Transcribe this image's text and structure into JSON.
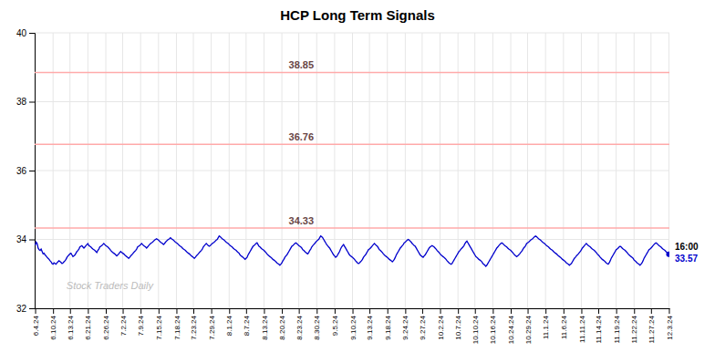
{
  "chart_data": {
    "type": "line",
    "title": "HCP Long Term Signals",
    "color": "#0000cc",
    "grid": true,
    "ylim": [
      32,
      40
    ],
    "yticks": [
      32,
      34,
      36,
      38,
      40
    ],
    "hlines": [
      {
        "y": 38.85,
        "label": "38.85",
        "color": "#ffaaaa"
      },
      {
        "y": 36.76,
        "label": "36.76",
        "color": "#ffaaaa"
      },
      {
        "y": 34.33,
        "label": "34.33",
        "color": "#ffaaaa"
      }
    ],
    "annotations": [
      {
        "text": "16:00",
        "y": 33.57,
        "color": "#000000"
      },
      {
        "text": "33.57",
        "y": 33.57,
        "color": "#0000cc"
      }
    ],
    "watermark": {
      "text": "Stock Traders Daily",
      "color": "#bbbbbb"
    },
    "categories": [
      "6.4.24",
      null,
      null,
      null,
      null,
      null,
      null,
      null,
      null,
      null,
      null,
      null,
      null,
      null,
      null,
      null,
      null,
      null,
      "6.10.24",
      null,
      null,
      null,
      null,
      null,
      null,
      null,
      null,
      null,
      null,
      null,
      null,
      null,
      null,
      null,
      null,
      "6.13.24",
      null,
      null,
      null,
      null,
      null,
      null,
      null,
      null,
      null,
      null,
      null,
      null,
      null,
      null,
      null,
      null,
      null,
      "6.21.24",
      null,
      null,
      null,
      null,
      null,
      null,
      null,
      null,
      null,
      null,
      null,
      null,
      null,
      null,
      null,
      null,
      null,
      "6.26.24",
      null,
      null,
      null,
      null,
      null,
      null,
      null,
      null,
      null,
      null,
      null,
      null,
      null,
      null,
      null,
      null,
      "7.2.24",
      null,
      null,
      null,
      null,
      null,
      null,
      null,
      null,
      null,
      null,
      null,
      null,
      null,
      null,
      null,
      null,
      null,
      "7.9.24",
      null,
      null,
      null,
      null,
      null,
      null,
      null,
      null,
      null,
      null,
      null,
      null,
      null,
      null,
      null,
      null,
      null,
      "7.15.24",
      null,
      null,
      null,
      null,
      null,
      null,
      null,
      null,
      null,
      null,
      null,
      null,
      null,
      null,
      null,
      null,
      null,
      "7.18.24",
      null,
      null,
      null,
      null,
      null,
      null,
      null,
      null,
      null,
      null,
      null,
      null,
      null,
      null,
      null,
      null,
      "7.23.24",
      null,
      null,
      null,
      null,
      null,
      null,
      null,
      null,
      null,
      null,
      null,
      null,
      null,
      null,
      null,
      null,
      null,
      "7.29.24",
      null,
      null,
      null,
      null,
      null,
      null,
      null,
      null,
      null,
      null,
      null,
      null,
      null,
      null,
      null,
      null,
      null,
      "8.1.24",
      null,
      null,
      null,
      null,
      null,
      null,
      null,
      null,
      null,
      null,
      null,
      null,
      null,
      null,
      null,
      null,
      "8.7.24",
      null,
      null,
      null,
      null,
      null,
      null,
      null,
      null,
      null,
      null,
      null,
      null,
      null,
      null,
      null,
      null,
      null,
      "8.13.24",
      null,
      null,
      null,
      null,
      null,
      null,
      null,
      null,
      null,
      null,
      null,
      null,
      null,
      null,
      null,
      null,
      null,
      "8.20.24",
      null,
      null,
      null,
      null,
      null,
      null,
      null,
      null,
      null,
      null,
      null,
      null,
      null,
      null,
      null,
      null,
      "8.23.24",
      null,
      null,
      null,
      null,
      null,
      null,
      null,
      null,
      null,
      null,
      null,
      null,
      null,
      null,
      null,
      null,
      null,
      "8.30.24",
      null,
      null,
      null,
      null,
      null,
      null,
      null,
      null,
      null,
      null,
      null,
      null,
      null,
      null,
      null,
      null,
      null,
      "9.5.24",
      null,
      null,
      null,
      null,
      null,
      null,
      null,
      null,
      null,
      null,
      null,
      null,
      null,
      null,
      null,
      null,
      null,
      "9.10.24",
      null,
      null,
      null,
      null,
      null,
      null,
      null,
      null,
      null,
      null,
      null,
      null,
      null,
      null,
      null,
      null,
      "9.13.24",
      null,
      null,
      null,
      null,
      null,
      null,
      null,
      null,
      null,
      null,
      null,
      null,
      null,
      null,
      null,
      null,
      null,
      "9.18.24",
      null,
      null,
      null,
      null,
      null,
      null,
      null,
      null,
      null,
      null,
      null,
      null,
      null,
      null,
      null,
      null,
      null,
      "9.24.24",
      null,
      null,
      null,
      null,
      null,
      null,
      null,
      null,
      null,
      null,
      null,
      null,
      null,
      null,
      null,
      null,
      "9.27.24",
      null,
      null,
      null,
      null,
      null,
      null,
      null,
      null,
      null,
      null,
      null,
      null,
      null,
      null,
      null,
      null,
      null,
      "10.2.24",
      null,
      null,
      null,
      null,
      null,
      null,
      null,
      null,
      null,
      null,
      null,
      null,
      null,
      null,
      null,
      null,
      null,
      "10.7.24",
      null,
      null,
      null,
      null,
      null,
      null,
      null,
      null,
      null,
      null,
      null,
      null,
      null,
      null,
      null,
      null,
      "10.10.24",
      null,
      null,
      null,
      null,
      null,
      null,
      null,
      null,
      null,
      null,
      null,
      null,
      null,
      null,
      null,
      null,
      null,
      "10.16.24",
      null,
      null,
      null,
      null,
      null,
      null,
      null,
      null,
      null,
      null,
      null,
      null,
      null,
      null,
      null,
      null,
      null,
      "10.24.24",
      null,
      null,
      null,
      null,
      null,
      null,
      null,
      null,
      null,
      null,
      null,
      null,
      null,
      null,
      null,
      null,
      "10.29.24",
      null,
      null,
      null,
      null,
      null,
      null,
      null,
      null,
      null,
      null,
      null,
      null,
      null,
      null,
      null,
      null,
      null,
      "11.1.24",
      null,
      null,
      null,
      null,
      null,
      null,
      null,
      null,
      null,
      null,
      null,
      null,
      null,
      null,
      null,
      null,
      null,
      "11.6.24",
      null,
      null,
      null,
      null,
      null,
      null,
      null,
      null,
      null,
      null,
      null,
      null,
      null,
      null,
      null,
      null,
      null,
      "11.11.24",
      null,
      null,
      null,
      null,
      null,
      null,
      null,
      null,
      null,
      null,
      null,
      null,
      null,
      null,
      null,
      null,
      "11.14.24",
      null,
      null,
      null,
      null,
      null,
      null,
      null,
      null,
      null,
      null,
      null,
      null,
      null,
      null,
      null,
      null,
      null,
      "11.19.24",
      null,
      null,
      null,
      null,
      null,
      null,
      null,
      null,
      null,
      null,
      null,
      null,
      null,
      null,
      null,
      null,
      null,
      "11.22.24",
      null,
      null,
      null,
      null,
      null,
      null,
      null,
      null,
      null,
      null,
      null,
      null,
      null,
      null,
      null,
      null,
      "11.27.24",
      null,
      null,
      null,
      null,
      null,
      null,
      null,
      null,
      null,
      null,
      null,
      null,
      null,
      null,
      null,
      null,
      null,
      "12.3.24"
    ],
    "values": [
      33.83,
      33.92,
      33.88,
      33.75,
      33.7,
      33.68,
      33.72,
      33.65,
      33.58,
      33.6,
      33.55,
      33.52,
      33.48,
      33.45,
      33.42,
      33.38,
      33.35,
      33.3,
      33.28,
      33.32,
      33.3,
      33.28,
      33.32,
      33.35,
      33.38,
      33.36,
      33.33,
      33.3,
      33.32,
      33.35,
      33.38,
      33.42,
      33.48,
      33.52,
      33.55,
      33.58,
      33.6,
      33.55,
      33.5,
      33.52,
      33.55,
      33.6,
      33.65,
      33.68,
      33.72,
      33.78,
      33.8,
      33.82,
      33.78,
      33.75,
      33.78,
      33.82,
      33.85,
      33.88,
      33.82,
      33.8,
      33.78,
      33.75,
      33.72,
      33.7,
      33.68,
      33.65,
      33.62,
      33.68,
      33.72,
      33.78,
      33.8,
      33.82,
      33.85,
      33.88,
      33.85,
      33.82,
      33.8,
      33.78,
      33.75,
      33.72,
      33.68,
      33.65,
      33.62,
      33.6,
      33.58,
      33.55,
      33.52,
      33.55,
      33.58,
      33.62,
      33.65,
      33.62,
      33.6,
      33.58,
      33.55,
      33.52,
      33.5,
      33.48,
      33.45,
      33.48,
      33.52,
      33.55,
      33.58,
      33.62,
      33.65,
      33.68,
      33.72,
      33.78,
      33.8,
      33.82,
      33.85,
      33.88,
      33.85,
      33.82,
      33.8,
      33.78,
      33.75,
      33.78,
      33.82,
      33.85,
      33.88,
      33.9,
      33.92,
      33.95,
      33.98,
      34.0,
      34.02,
      34.0,
      33.98,
      33.95,
      33.92,
      33.9,
      33.88,
      33.85,
      33.88,
      33.92,
      33.95,
      33.98,
      34.0,
      34.02,
      34.05,
      34.02,
      34.0,
      33.98,
      33.95,
      33.92,
      33.9,
      33.88,
      33.85,
      33.82,
      33.8,
      33.78,
      33.75,
      33.72,
      33.7,
      33.68,
      33.65,
      33.62,
      33.6,
      33.58,
      33.55,
      33.52,
      33.5,
      33.48,
      33.45,
      33.48,
      33.52,
      33.55,
      33.58,
      33.62,
      33.65,
      33.68,
      33.72,
      33.78,
      33.82,
      33.85,
      33.88,
      33.85,
      33.82,
      33.8,
      33.82,
      33.85,
      33.88,
      33.9,
      33.92,
      33.95,
      33.98,
      34.0,
      34.05,
      34.1,
      34.08,
      34.05,
      34.02,
      34.0,
      33.98,
      33.95,
      33.92,
      33.9,
      33.88,
      33.85,
      33.82,
      33.8,
      33.78,
      33.75,
      33.72,
      33.7,
      33.68,
      33.65,
      33.62,
      33.6,
      33.55,
      33.52,
      33.5,
      33.48,
      33.45,
      33.42,
      33.45,
      33.48,
      33.55,
      33.6,
      33.65,
      33.7,
      33.75,
      33.8,
      33.82,
      33.85,
      33.88,
      33.9,
      33.85,
      33.8,
      33.78,
      33.75,
      33.72,
      33.7,
      33.68,
      33.65,
      33.62,
      33.58,
      33.55,
      33.52,
      33.5,
      33.48,
      33.45,
      33.42,
      33.4,
      33.38,
      33.35,
      33.32,
      33.3,
      33.28,
      33.25,
      33.28,
      33.32,
      33.38,
      33.42,
      33.48,
      33.52,
      33.55,
      33.6,
      33.65,
      33.7,
      33.75,
      33.8,
      33.82,
      33.85,
      33.88,
      33.9,
      33.88,
      33.85,
      33.82,
      33.8,
      33.78,
      33.75,
      33.7,
      33.68,
      33.65,
      33.62,
      33.6,
      33.58,
      33.62,
      33.68,
      33.72,
      33.78,
      33.82,
      33.85,
      33.88,
      33.92,
      33.95,
      33.98,
      34.0,
      34.05,
      34.1,
      34.08,
      34.05,
      34.0,
      33.95,
      33.9,
      33.85,
      33.82,
      33.78,
      33.75,
      33.7,
      33.65,
      33.6,
      33.55,
      33.52,
      33.48,
      33.5,
      33.55,
      33.6,
      33.65,
      33.72,
      33.78,
      33.82,
      33.85,
      33.8,
      33.75,
      33.7,
      33.65,
      33.6,
      33.55,
      33.52,
      33.5,
      33.48,
      33.45,
      33.42,
      33.38,
      33.35,
      33.32,
      33.3,
      33.32,
      33.35,
      33.38,
      33.42,
      33.48,
      33.52,
      33.55,
      33.6,
      33.65,
      33.7,
      33.72,
      33.75,
      33.78,
      33.82,
      33.85,
      33.88,
      33.85,
      33.82,
      33.8,
      33.75,
      33.7,
      33.68,
      33.65,
      33.62,
      33.58,
      33.55,
      33.52,
      33.5,
      33.48,
      33.45,
      33.42,
      33.4,
      33.38,
      33.35,
      33.38,
      33.42,
      33.48,
      33.55,
      33.6,
      33.65,
      33.7,
      33.75,
      33.78,
      33.82,
      33.85,
      33.9,
      33.92,
      33.95,
      33.98,
      34.0,
      33.98,
      33.95,
      33.92,
      33.88,
      33.85,
      33.82,
      33.8,
      33.75,
      33.7,
      33.65,
      33.6,
      33.55,
      33.52,
      33.5,
      33.48,
      33.52,
      33.55,
      33.6,
      33.65,
      33.7,
      33.75,
      33.78,
      33.8,
      33.82,
      33.8,
      33.78,
      33.75,
      33.72,
      33.68,
      33.65,
      33.62,
      33.58,
      33.55,
      33.52,
      33.5,
      33.48,
      33.45,
      33.42,
      33.38,
      33.35,
      33.32,
      33.3,
      33.28,
      33.3,
      33.35,
      33.4,
      33.45,
      33.5,
      33.55,
      33.6,
      33.65,
      33.68,
      33.72,
      33.75,
      33.78,
      33.82,
      33.88,
      33.92,
      33.95,
      33.9,
      33.85,
      33.8,
      33.75,
      33.7,
      33.65,
      33.6,
      33.55,
      33.5,
      33.48,
      33.45,
      33.42,
      33.4,
      33.38,
      33.35,
      33.3,
      33.28,
      33.25,
      33.22,
      33.25,
      33.3,
      33.35,
      33.4,
      33.45,
      33.5,
      33.55,
      33.6,
      33.65,
      33.7,
      33.75,
      33.78,
      33.82,
      33.85,
      33.88,
      33.9,
      33.88,
      33.85,
      33.82,
      33.8,
      33.78,
      33.75,
      33.72,
      33.7,
      33.68,
      33.65,
      33.62,
      33.58,
      33.55,
      33.52,
      33.5,
      33.52,
      33.55,
      33.58,
      33.62,
      33.65,
      33.7,
      33.75,
      33.78,
      33.82,
      33.88,
      33.9,
      33.92,
      33.95,
      33.98,
      34.0,
      34.02,
      34.05,
      34.08,
      34.1,
      34.08,
      34.05,
      34.02,
      34.0,
      33.98,
      33.95,
      33.92,
      33.9,
      33.88,
      33.85,
      33.82,
      33.8,
      33.78,
      33.75,
      33.72,
      33.7,
      33.68,
      33.65,
      33.62,
      33.6,
      33.58,
      33.55,
      33.52,
      33.5,
      33.48,
      33.45,
      33.42,
      33.4,
      33.38,
      33.35,
      33.32,
      33.3,
      33.28,
      33.25,
      33.28,
      33.3,
      33.35,
      33.4,
      33.45,
      33.48,
      33.52,
      33.55,
      33.58,
      33.62,
      33.65,
      33.7,
      33.75,
      33.78,
      33.82,
      33.85,
      33.88,
      33.85,
      33.82,
      33.8,
      33.78,
      33.75,
      33.72,
      33.7,
      33.68,
      33.65,
      33.62,
      33.58,
      33.55,
      33.52,
      33.48,
      33.45,
      33.42,
      33.4,
      33.38,
      33.35,
      33.32,
      33.3,
      33.28,
      33.32,
      33.38,
      33.45,
      33.5,
      33.55,
      33.6,
      33.65,
      33.7,
      33.72,
      33.75,
      33.78,
      33.8,
      33.78,
      33.75,
      33.72,
      33.7,
      33.68,
      33.65,
      33.62,
      33.58,
      33.55,
      33.52,
      33.5,
      33.48,
      33.45,
      33.4,
      33.38,
      33.35,
      33.32,
      33.3,
      33.28,
      33.25,
      33.28,
      33.32,
      33.38,
      33.45,
      33.5,
      33.55,
      33.6,
      33.65,
      33.7,
      33.72,
      33.75,
      33.78,
      33.82,
      33.85,
      33.88,
      33.9,
      33.88,
      33.85,
      33.82,
      33.8,
      33.78,
      33.75,
      33.72,
      33.7,
      33.68,
      33.65,
      33.62,
      33.6,
      33.57
    ]
  }
}
